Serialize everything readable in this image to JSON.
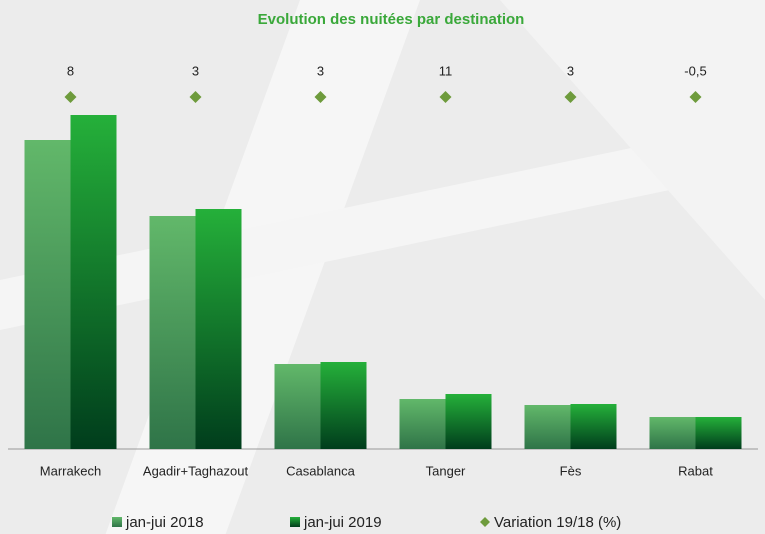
{
  "chart_data": {
    "type": "bar",
    "title": "Evolution des nuitées par destination",
    "categories": [
      "Marrakech",
      "Agadir+Taghazout",
      "Casablanca",
      "Tanger",
      "Fès",
      "Rabat"
    ],
    "series": [
      {
        "name": "jan-jui 2018",
        "color": "#4fa860",
        "values": [
          309,
          233,
          85,
          50,
          44,
          32
        ]
      },
      {
        "name": "jan-jui 2019",
        "color": "#1fa535",
        "values": [
          334,
          240,
          87,
          55,
          45,
          32
        ]
      },
      {
        "name": "Variation 19/18 (%)",
        "color": "#6e9b3c",
        "type": "marker",
        "values": [
          8,
          3,
          3,
          11,
          3,
          -0.5
        ],
        "value_labels": [
          "8",
          "3",
          "3",
          "11",
          "3",
          "-0,5"
        ]
      }
    ],
    "ylim": [
      0,
      360
    ]
  }
}
